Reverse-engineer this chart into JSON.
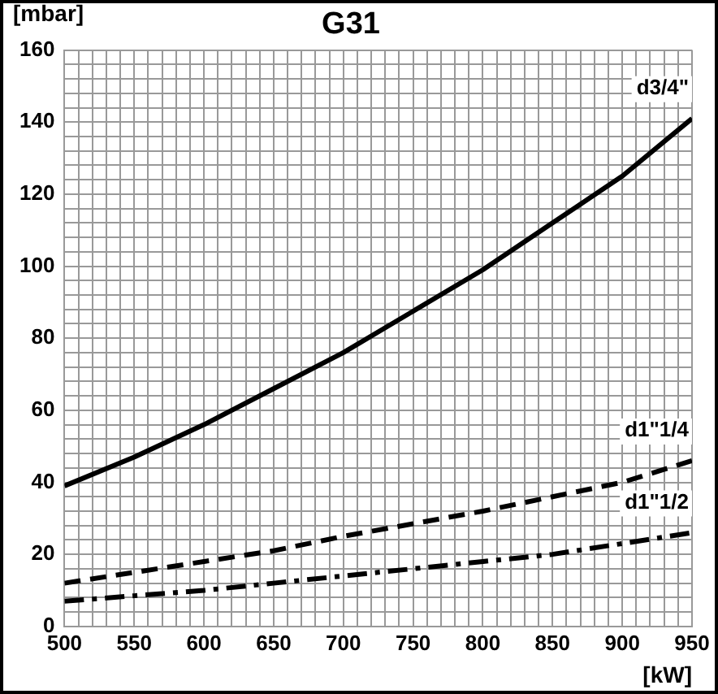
{
  "chart_data": {
    "type": "line",
    "title": "G31",
    "xlabel": "[kW]",
    "ylabel": "[mbar]",
    "x": [
      500,
      550,
      600,
      650,
      700,
      750,
      800,
      850,
      900,
      950
    ],
    "series": [
      {
        "name": "d3/4\"",
        "color": "#000000",
        "line_style": "solid",
        "values": [
          39,
          47,
          56,
          66,
          76,
          87.5,
          99,
          112,
          125,
          141
        ]
      },
      {
        "name": "d1\"1/4",
        "color": "#000000",
        "line_style": "dashed",
        "values": [
          12,
          15,
          18,
          21,
          25,
          28.5,
          32,
          36,
          40,
          46
        ]
      },
      {
        "name": "d1\"1/2",
        "color": "#000000",
        "line_style": "dashdot",
        "values": [
          7,
          8.5,
          10,
          12,
          14,
          16,
          18,
          20,
          23,
          26
        ]
      }
    ],
    "xlim": [
      500,
      950
    ],
    "xticks": [
      500,
      {
        "value": 510,
        "label": null
      },
      {
        "value": 520,
        "label": null
      },
      {
        "value": 530,
        "label": null
      },
      {
        "value": 540,
        "label": null
      },
      550,
      {
        "value": 560,
        "label": null
      },
      {
        "value": 570,
        "label": null
      },
      {
        "value": 580,
        "label": null
      },
      {
        "value": 590,
        "label": null
      },
      600,
      {
        "value": 610,
        "label": null
      },
      {
        "value": 620,
        "label": null
      },
      {
        "value": 630,
        "label": null
      },
      {
        "value": 640,
        "label": null
      },
      650,
      {
        "value": 660,
        "label": null
      },
      {
        "value": 670,
        "label": null
      },
      {
        "value": 680,
        "label": null
      },
      {
        "value": 690,
        "label": null
      },
      700,
      {
        "value": 710,
        "label": null
      },
      {
        "value": 720,
        "label": null
      },
      {
        "value": 730,
        "label": null
      },
      {
        "value": 740,
        "label": null
      },
      750,
      {
        "value": 760,
        "label": null
      },
      {
        "value": 770,
        "label": null
      },
      {
        "value": 780,
        "label": null
      },
      {
        "value": 790,
        "label": null
      },
      800,
      {
        "value": 810,
        "label": null
      },
      {
        "value": 820,
        "label": null
      },
      {
        "value": 830,
        "label": null
      },
      {
        "value": 840,
        "label": null
      },
      850,
      {
        "value": 860,
        "label": null
      },
      {
        "value": 870,
        "label": null
      },
      {
        "value": 880,
        "label": null
      },
      {
        "value": 890,
        "label": null
      },
      900,
      {
        "value": 910,
        "label": null
      },
      {
        "value": 920,
        "label": null
      },
      {
        "value": 930,
        "label": null
      },
      {
        "value": 940,
        "label": null
      },
      950
    ],
    "ylim": [
      0,
      160
    ],
    "yticks": [
      0,
      {
        "value": 4,
        "label": null
      },
      {
        "value": 8,
        "label": null
      },
      {
        "value": 12,
        "label": null
      },
      {
        "value": 16,
        "label": null
      },
      20,
      {
        "value": 24,
        "label": null
      },
      {
        "value": 28,
        "label": null
      },
      {
        "value": 32,
        "label": null
      },
      {
        "value": 36,
        "label": null
      },
      40,
      {
        "value": 44,
        "label": null
      },
      {
        "value": 48,
        "label": null
      },
      {
        "value": 52,
        "label": null
      },
      {
        "value": 56,
        "label": null
      },
      60,
      {
        "value": 64,
        "label": null
      },
      {
        "value": 68,
        "label": null
      },
      {
        "value": 72,
        "label": null
      },
      {
        "value": 76,
        "label": null
      },
      80,
      {
        "value": 84,
        "label": null
      },
      {
        "value": 88,
        "label": null
      },
      {
        "value": 92,
        "label": null
      },
      {
        "value": 96,
        "label": null
      },
      100,
      {
        "value": 104,
        "label": null
      },
      {
        "value": 108,
        "label": null
      },
      {
        "value": 112,
        "label": null
      },
      {
        "value": 116,
        "label": null
      },
      120,
      {
        "value": 124,
        "label": null
      },
      {
        "value": 128,
        "label": null
      },
      {
        "value": 132,
        "label": null
      },
      {
        "value": 136,
        "label": null
      },
      140,
      {
        "value": 144,
        "label": null
      },
      {
        "value": 148,
        "label": null
      },
      {
        "value": 152,
        "label": null
      },
      {
        "value": 156,
        "label": null
      },
      160
    ],
    "grid": true,
    "legend": false,
    "marker": "none"
  }
}
